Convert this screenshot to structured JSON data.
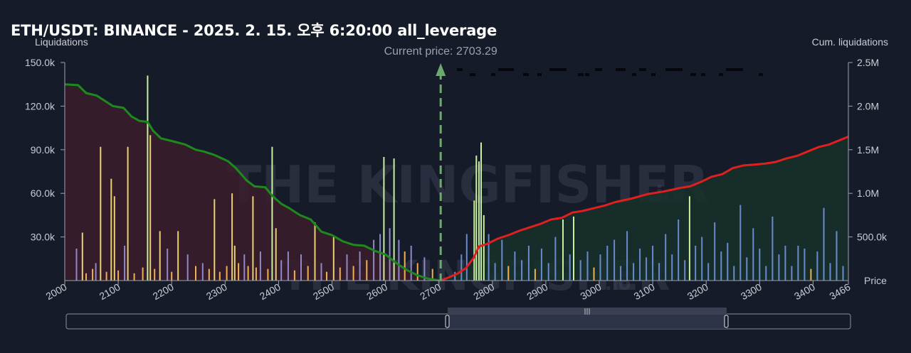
{
  "title": "ETH/USDT: BINANCE - 2025. 2. 15. 오후 6:20:00 all_leverage",
  "left_axis_title": "Liquidations",
  "right_axis_title": "Cum. liquidations",
  "x_axis_title": "Price",
  "current_price_label": "Current price: 2703.29",
  "watermark": {
    "main": "THE KINGFISHER",
    "suffix": ".io"
  },
  "colors": {
    "background": "#161b29",
    "short_cum_line": "#1e8a1e",
    "long_cum_line": "#e0201e",
    "short_area": "#3a1c2a",
    "long_area": "#16302a",
    "current_price_line": "#6fa86f",
    "bar_yellow": "#e8d070",
    "bar_green": "#c8f0a0",
    "bar_orange": "#f0b050",
    "bar_purple": "#9088c8",
    "bar_blue": "#6a8ad0"
  },
  "chart_data": {
    "type": "bar",
    "xlim": [
      2000,
      3466
    ],
    "x_ticks": [
      "2000",
      "2100",
      "2200",
      "2300",
      "2400",
      "2500",
      "2600",
      "2700",
      "2800",
      "2900",
      "3000",
      "3100",
      "3200",
      "3300",
      "3400",
      "3466"
    ],
    "ylim_left": [
      0,
      150000
    ],
    "y_ticks_left": [
      "30.0k",
      "60.0k",
      "90.0k",
      "120.0k",
      "150.0k"
    ],
    "ylim_right": [
      0,
      2500000
    ],
    "y_ticks_right": [
      "500.0k",
      "1.0M",
      "1.5M",
      "2.0M",
      "2.5M"
    ],
    "current_price": 2703.29,
    "grid": false,
    "bars": [
      {
        "price": 2022,
        "value": 22000,
        "color": "bar_purple"
      },
      {
        "price": 2033,
        "value": 33000,
        "color": "bar_yellow"
      },
      {
        "price": 2040,
        "value": 5000,
        "color": "bar_orange"
      },
      {
        "price": 2052,
        "value": 8000,
        "color": "bar_orange"
      },
      {
        "price": 2058,
        "value": 12000,
        "color": "bar_purple"
      },
      {
        "price": 2067,
        "value": 92000,
        "color": "bar_yellow"
      },
      {
        "price": 2078,
        "value": 6000,
        "color": "bar_orange"
      },
      {
        "price": 2087,
        "value": 70000,
        "color": "bar_yellow"
      },
      {
        "price": 2093,
        "value": 58000,
        "color": "bar_yellow"
      },
      {
        "price": 2100,
        "value": 7000,
        "color": "bar_orange"
      },
      {
        "price": 2112,
        "value": 24000,
        "color": "bar_purple"
      },
      {
        "price": 2118,
        "value": 92000,
        "color": "bar_yellow"
      },
      {
        "price": 2130,
        "value": 5000,
        "color": "bar_orange"
      },
      {
        "price": 2146,
        "value": 9000,
        "color": "bar_orange"
      },
      {
        "price": 2155,
        "value": 141000,
        "color": "bar_green"
      },
      {
        "price": 2160,
        "value": 100000,
        "color": "bar_yellow"
      },
      {
        "price": 2168,
        "value": 8000,
        "color": "bar_orange"
      },
      {
        "price": 2178,
        "value": 34000,
        "color": "bar_yellow"
      },
      {
        "price": 2192,
        "value": 22000,
        "color": "bar_purple"
      },
      {
        "price": 2200,
        "value": 6000,
        "color": "bar_orange"
      },
      {
        "price": 2212,
        "value": 34000,
        "color": "bar_yellow"
      },
      {
        "price": 2230,
        "value": 18000,
        "color": "bar_purple"
      },
      {
        "price": 2245,
        "value": 10000,
        "color": "bar_orange"
      },
      {
        "price": 2258,
        "value": 12000,
        "color": "bar_purple"
      },
      {
        "price": 2270,
        "value": 8000,
        "color": "bar_orange"
      },
      {
        "price": 2280,
        "value": 56000,
        "color": "bar_yellow"
      },
      {
        "price": 2290,
        "value": 6000,
        "color": "bar_orange"
      },
      {
        "price": 2303,
        "value": 10000,
        "color": "bar_orange"
      },
      {
        "price": 2313,
        "value": 60000,
        "color": "bar_yellow"
      },
      {
        "price": 2318,
        "value": 24000,
        "color": "bar_yellow"
      },
      {
        "price": 2325,
        "value": 12000,
        "color": "bar_orange"
      },
      {
        "price": 2336,
        "value": 18000,
        "color": "bar_purple"
      },
      {
        "price": 2343,
        "value": 10000,
        "color": "bar_orange"
      },
      {
        "price": 2352,
        "value": 58000,
        "color": "bar_yellow"
      },
      {
        "price": 2358,
        "value": 9000,
        "color": "bar_orange"
      },
      {
        "price": 2366,
        "value": 20000,
        "color": "bar_purple"
      },
      {
        "price": 2380,
        "value": 8000,
        "color": "bar_orange"
      },
      {
        "price": 2388,
        "value": 92000,
        "color": "bar_green"
      },
      {
        "price": 2395,
        "value": 36000,
        "color": "bar_yellow"
      },
      {
        "price": 2405,
        "value": 14000,
        "color": "bar_purple"
      },
      {
        "price": 2418,
        "value": 20000,
        "color": "bar_purple"
      },
      {
        "price": 2430,
        "value": 7000,
        "color": "bar_orange"
      },
      {
        "price": 2442,
        "value": 18000,
        "color": "bar_purple"
      },
      {
        "price": 2455,
        "value": 10000,
        "color": "bar_orange"
      },
      {
        "price": 2468,
        "value": 40000,
        "color": "bar_yellow"
      },
      {
        "price": 2480,
        "value": 12000,
        "color": "bar_purple"
      },
      {
        "price": 2490,
        "value": 6000,
        "color": "bar_orange"
      },
      {
        "price": 2503,
        "value": 30000,
        "color": "bar_yellow"
      },
      {
        "price": 2515,
        "value": 9000,
        "color": "bar_orange"
      },
      {
        "price": 2528,
        "value": 18000,
        "color": "bar_purple"
      },
      {
        "price": 2540,
        "value": 10000,
        "color": "bar_orange"
      },
      {
        "price": 2552,
        "value": 20000,
        "color": "bar_purple"
      },
      {
        "price": 2565,
        "value": 14000,
        "color": "bar_orange"
      },
      {
        "price": 2578,
        "value": 28000,
        "color": "bar_purple"
      },
      {
        "price": 2590,
        "value": 32000,
        "color": "bar_purple"
      },
      {
        "price": 2597,
        "value": 85000,
        "color": "bar_green"
      },
      {
        "price": 2608,
        "value": 36000,
        "color": "bar_purple"
      },
      {
        "price": 2616,
        "value": 84000,
        "color": "bar_green"
      },
      {
        "price": 2625,
        "value": 28000,
        "color": "bar_purple"
      },
      {
        "price": 2636,
        "value": 20000,
        "color": "bar_orange"
      },
      {
        "price": 2648,
        "value": 24000,
        "color": "bar_purple"
      },
      {
        "price": 2660,
        "value": 12000,
        "color": "bar_orange"
      },
      {
        "price": 2673,
        "value": 16000,
        "color": "bar_purple"
      },
      {
        "price": 2688,
        "value": 8000,
        "color": "bar_orange"
      },
      {
        "price": 2730,
        "value": 6000,
        "color": "bar_blue"
      },
      {
        "price": 2742,
        "value": 18000,
        "color": "bar_blue"
      },
      {
        "price": 2752,
        "value": 32000,
        "color": "bar_blue"
      },
      {
        "price": 2766,
        "value": 55000,
        "color": "bar_green"
      },
      {
        "price": 2770,
        "value": 86000,
        "color": "bar_green"
      },
      {
        "price": 2775,
        "value": 82000,
        "color": "bar_green"
      },
      {
        "price": 2779,
        "value": 95000,
        "color": "bar_green"
      },
      {
        "price": 2784,
        "value": 45000,
        "color": "bar_green"
      },
      {
        "price": 2793,
        "value": 32000,
        "color": "bar_blue"
      },
      {
        "price": 2805,
        "value": 12000,
        "color": "bar_blue"
      },
      {
        "price": 2818,
        "value": 28000,
        "color": "bar_blue"
      },
      {
        "price": 2830,
        "value": 10000,
        "color": "bar_orange"
      },
      {
        "price": 2842,
        "value": 20000,
        "color": "bar_blue"
      },
      {
        "price": 2855,
        "value": 14000,
        "color": "bar_blue"
      },
      {
        "price": 2868,
        "value": 24000,
        "color": "bar_blue"
      },
      {
        "price": 2880,
        "value": 8000,
        "color": "bar_orange"
      },
      {
        "price": 2892,
        "value": 22000,
        "color": "bar_blue"
      },
      {
        "price": 2905,
        "value": 12000,
        "color": "bar_blue"
      },
      {
        "price": 2918,
        "value": 30000,
        "color": "bar_blue"
      },
      {
        "price": 2932,
        "value": 42000,
        "color": "bar_green"
      },
      {
        "price": 2945,
        "value": 18000,
        "color": "bar_blue"
      },
      {
        "price": 2952,
        "value": 44000,
        "color": "bar_green"
      },
      {
        "price": 2965,
        "value": 14000,
        "color": "bar_blue"
      },
      {
        "price": 2978,
        "value": 20000,
        "color": "bar_blue"
      },
      {
        "price": 2990,
        "value": 9000,
        "color": "bar_orange"
      },
      {
        "price": 3002,
        "value": 18000,
        "color": "bar_blue"
      },
      {
        "price": 3015,
        "value": 24000,
        "color": "bar_blue"
      },
      {
        "price": 3028,
        "value": 28000,
        "color": "bar_blue"
      },
      {
        "price": 3040,
        "value": 10000,
        "color": "bar_blue"
      },
      {
        "price": 3052,
        "value": 34000,
        "color": "bar_blue"
      },
      {
        "price": 3064,
        "value": 12000,
        "color": "bar_blue"
      },
      {
        "price": 3076,
        "value": 22000,
        "color": "bar_blue"
      },
      {
        "price": 3088,
        "value": 16000,
        "color": "bar_blue"
      },
      {
        "price": 3100,
        "value": 24000,
        "color": "bar_blue"
      },
      {
        "price": 3112,
        "value": 12000,
        "color": "bar_blue"
      },
      {
        "price": 3124,
        "value": 32000,
        "color": "bar_blue"
      },
      {
        "price": 3136,
        "value": 18000,
        "color": "bar_blue"
      },
      {
        "price": 3148,
        "value": 42000,
        "color": "bar_blue"
      },
      {
        "price": 3160,
        "value": 14000,
        "color": "bar_blue"
      },
      {
        "price": 3169,
        "value": 58000,
        "color": "bar_green"
      },
      {
        "price": 3180,
        "value": 24000,
        "color": "bar_blue"
      },
      {
        "price": 3192,
        "value": 30000,
        "color": "bar_blue"
      },
      {
        "price": 3204,
        "value": 12000,
        "color": "bar_blue"
      },
      {
        "price": 3216,
        "value": 40000,
        "color": "bar_blue"
      },
      {
        "price": 3228,
        "value": 20000,
        "color": "bar_blue"
      },
      {
        "price": 3240,
        "value": 26000,
        "color": "bar_blue"
      },
      {
        "price": 3252,
        "value": 10000,
        "color": "bar_blue"
      },
      {
        "price": 3264,
        "value": 52000,
        "color": "bar_blue"
      },
      {
        "price": 3276,
        "value": 16000,
        "color": "bar_blue"
      },
      {
        "price": 3288,
        "value": 36000,
        "color": "bar_blue"
      },
      {
        "price": 3300,
        "value": 22000,
        "color": "bar_blue"
      },
      {
        "price": 3312,
        "value": 10000,
        "color": "bar_blue"
      },
      {
        "price": 3324,
        "value": 44000,
        "color": "bar_blue"
      },
      {
        "price": 3336,
        "value": 18000,
        "color": "bar_blue"
      },
      {
        "price": 3348,
        "value": 24000,
        "color": "bar_blue"
      },
      {
        "price": 3360,
        "value": 10000,
        "color": "bar_blue"
      },
      {
        "price": 3372,
        "value": 24000,
        "color": "bar_blue"
      },
      {
        "price": 3384,
        "value": 22000,
        "color": "bar_blue"
      },
      {
        "price": 3396,
        "value": 8000,
        "color": "bar_orange"
      },
      {
        "price": 3408,
        "value": 20000,
        "color": "bar_blue"
      },
      {
        "price": 3420,
        "value": 50000,
        "color": "bar_blue"
      },
      {
        "price": 3432,
        "value": 12000,
        "color": "bar_blue"
      },
      {
        "price": 3444,
        "value": 34000,
        "color": "bar_blue"
      },
      {
        "price": 3456,
        "value": 10000,
        "color": "bar_blue"
      }
    ],
    "series": [
      {
        "name": "short cumulative",
        "axis": "right",
        "color": "short_cum_line",
        "points": [
          [
            2000,
            2250000
          ],
          [
            2025,
            2240000
          ],
          [
            2040,
            2150000
          ],
          [
            2060,
            2120000
          ],
          [
            2075,
            2060000
          ],
          [
            2090,
            2000000
          ],
          [
            2110,
            1980000
          ],
          [
            2125,
            1880000
          ],
          [
            2140,
            1830000
          ],
          [
            2155,
            1820000
          ],
          [
            2165,
            1720000
          ],
          [
            2180,
            1630000
          ],
          [
            2200,
            1600000
          ],
          [
            2225,
            1560000
          ],
          [
            2245,
            1500000
          ],
          [
            2260,
            1480000
          ],
          [
            2280,
            1440000
          ],
          [
            2305,
            1370000
          ],
          [
            2320,
            1290000
          ],
          [
            2340,
            1150000
          ],
          [
            2355,
            1080000
          ],
          [
            2375,
            1070000
          ],
          [
            2390,
            960000
          ],
          [
            2405,
            880000
          ],
          [
            2420,
            830000
          ],
          [
            2440,
            750000
          ],
          [
            2460,
            700000
          ],
          [
            2480,
            560000
          ],
          [
            2500,
            520000
          ],
          [
            2520,
            450000
          ],
          [
            2540,
            410000
          ],
          [
            2560,
            400000
          ],
          [
            2580,
            340000
          ],
          [
            2600,
            300000
          ],
          [
            2620,
            200000
          ],
          [
            2640,
            120000
          ],
          [
            2660,
            60000
          ],
          [
            2680,
            20000
          ],
          [
            2703,
            0
          ]
        ]
      },
      {
        "name": "long cumulative",
        "axis": "right",
        "color": "long_cum_line",
        "points": [
          [
            2703,
            0
          ],
          [
            2720,
            40000
          ],
          [
            2735,
            80000
          ],
          [
            2750,
            140000
          ],
          [
            2765,
            260000
          ],
          [
            2775,
            390000
          ],
          [
            2790,
            420000
          ],
          [
            2810,
            480000
          ],
          [
            2830,
            520000
          ],
          [
            2850,
            570000
          ],
          [
            2870,
            610000
          ],
          [
            2890,
            650000
          ],
          [
            2910,
            700000
          ],
          [
            2930,
            720000
          ],
          [
            2950,
            780000
          ],
          [
            2970,
            800000
          ],
          [
            2990,
            830000
          ],
          [
            3010,
            860000
          ],
          [
            3030,
            900000
          ],
          [
            3060,
            940000
          ],
          [
            3090,
            990000
          ],
          [
            3120,
            1020000
          ],
          [
            3150,
            1060000
          ],
          [
            3170,
            1080000
          ],
          [
            3190,
            1130000
          ],
          [
            3210,
            1190000
          ],
          [
            3230,
            1220000
          ],
          [
            3250,
            1290000
          ],
          [
            3270,
            1320000
          ],
          [
            3290,
            1330000
          ],
          [
            3310,
            1340000
          ],
          [
            3330,
            1360000
          ],
          [
            3350,
            1400000
          ],
          [
            3370,
            1430000
          ],
          [
            3390,
            1480000
          ],
          [
            3410,
            1530000
          ],
          [
            3430,
            1560000
          ],
          [
            3450,
            1610000
          ],
          [
            3466,
            1650000
          ]
        ]
      }
    ]
  }
}
